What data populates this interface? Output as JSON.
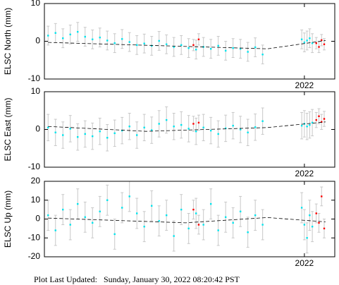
{
  "chart_data": [
    {
      "type": "scatter",
      "ylabel": "ELSC North (mm)",
      "xlim": [
        2021.016,
        2022.115
      ],
      "xticks": [
        2022
      ],
      "ylim": [
        -10,
        10
      ],
      "yticks": [
        -10,
        0,
        10
      ],
      "series": [
        {
          "color": "#00e5ee",
          "x": [
            2021.03,
            2021.058,
            2021.086,
            2021.114,
            2021.142,
            2021.17,
            2021.198,
            2021.226,
            2021.254,
            2021.282,
            2021.31,
            2021.338,
            2021.366,
            2021.394,
            2021.422,
            2021.45,
            2021.478,
            2021.506,
            2021.534,
            2021.562,
            2021.59,
            2021.618,
            2021.646,
            2021.674,
            2021.702,
            2021.73,
            2021.758,
            2021.786,
            2021.814,
            2021.842,
            2021.99,
            2022.0,
            2022.01,
            2022.02,
            2022.03
          ],
          "values": [
            1.5,
            2.2,
            0.8,
            1.8,
            2.5,
            1.2,
            0.5,
            1.0,
            0.2,
            -0.5,
            0.6,
            -0.2,
            -1.0,
            -0.6,
            -1.2,
            0.1,
            -0.8,
            -1.5,
            -1.0,
            -1.8,
            -2.2,
            -1.5,
            -2.0,
            -1.2,
            -2.5,
            -1.8,
            -2.0,
            -2.8,
            -1.6,
            -3.5,
            0.5,
            -0.3,
            0.2,
            0.8,
            -0.5
          ],
          "errors": [
            2.5,
            2.5,
            2.5,
            2.5,
            2.5,
            2.5,
            2.5,
            2.5,
            2.5,
            2.5,
            2.5,
            2.5,
            2.5,
            2.5,
            2.5,
            2.5,
            2.5,
            2.5,
            2.5,
            2.5,
            2.5,
            2.5,
            2.5,
            2.5,
            2.5,
            2.5,
            2.5,
            2.5,
            2.5,
            2.5,
            2.5,
            2.5,
            2.5,
            2.5,
            2.5
          ]
        },
        {
          "color": "#ff0000",
          "x": [
            2021.58,
            2021.6,
            2022.045,
            2022.055,
            2022.065,
            2022.075
          ],
          "values": [
            -1.0,
            0.5,
            -0.5,
            -1.5,
            0.3,
            -0.8
          ],
          "errors": [
            1.5,
            1.5,
            1.5,
            1.5,
            1.5,
            1.5
          ]
        }
      ],
      "trend": {
        "x": [
          2021.03,
          2021.86,
          2022.08
        ],
        "values": [
          -0.3,
          -2.0,
          0.2
        ]
      }
    },
    {
      "type": "scatter",
      "ylabel": "ELSC East (mm)",
      "xlim": [
        2021.016,
        2022.115
      ],
      "xticks": [
        2022
      ],
      "ylim": [
        -10,
        10
      ],
      "yticks": [
        -10,
        0,
        10
      ],
      "series": [
        {
          "color": "#00e5ee",
          "x": [
            2021.03,
            2021.058,
            2021.086,
            2021.114,
            2021.142,
            2021.17,
            2021.198,
            2021.226,
            2021.254,
            2021.282,
            2021.31,
            2021.338,
            2021.366,
            2021.394,
            2021.422,
            2021.45,
            2021.478,
            2021.506,
            2021.534,
            2021.562,
            2021.59,
            2021.618,
            2021.646,
            2021.674,
            2021.702,
            2021.73,
            2021.758,
            2021.786,
            2021.814,
            2021.842,
            2021.99,
            2022.0,
            2022.01,
            2022.02,
            2022.03
          ],
          "values": [
            0.5,
            -0.8,
            -1.5,
            0.2,
            -2.0,
            -1.2,
            -1.8,
            -0.5,
            -2.2,
            -1.0,
            -0.3,
            0.8,
            -1.5,
            0.5,
            -0.2,
            1.5,
            2.5,
            0.8,
            1.2,
            0.2,
            -0.5,
            0.5,
            -0.3,
            -1.2,
            0.3,
            1.0,
            0.0,
            -0.8,
            0.6,
            2.2,
            1.0,
            1.5,
            0.8,
            1.2,
            1.8
          ],
          "errors": [
            3.5,
            3.5,
            3.5,
            3.5,
            3.5,
            3.5,
            3.5,
            3.5,
            3.5,
            3.5,
            3.5,
            3.5,
            3.5,
            3.5,
            3.5,
            3.5,
            3.5,
            3.5,
            3.5,
            3.5,
            3.5,
            3.5,
            3.5,
            3.5,
            3.5,
            3.5,
            3.5,
            3.5,
            3.5,
            3.5,
            3.5,
            3.5,
            3.5,
            3.5,
            3.5
          ]
        },
        {
          "color": "#ff0000",
          "x": [
            2021.58,
            2021.6,
            2022.045,
            2022.055,
            2022.065,
            2022.075
          ],
          "values": [
            1.5,
            1.8,
            2.5,
            3.5,
            2.0,
            2.8
          ],
          "errors": [
            2,
            2,
            2,
            2,
            2,
            2
          ]
        }
      ],
      "trend": {
        "x": [
          2021.03,
          2021.4,
          2021.86,
          2022.08
        ],
        "values": [
          0.8,
          -0.5,
          0.5,
          2.0
        ]
      }
    },
    {
      "type": "scatter",
      "ylabel": "ELSC Up (mm)",
      "xlim": [
        2021.016,
        2022.115
      ],
      "xticks": [
        2022
      ],
      "ylim": [
        -20,
        20
      ],
      "yticks": [
        -20,
        -10,
        0,
        10,
        20
      ],
      "series": [
        {
          "color": "#00e5ee",
          "x": [
            2021.03,
            2021.058,
            2021.086,
            2021.114,
            2021.142,
            2021.17,
            2021.198,
            2021.226,
            2021.254,
            2021.282,
            2021.31,
            2021.338,
            2021.366,
            2021.394,
            2021.422,
            2021.45,
            2021.478,
            2021.506,
            2021.534,
            2021.562,
            2021.59,
            2021.618,
            2021.646,
            2021.674,
            2021.702,
            2021.73,
            2021.758,
            2021.786,
            2021.814,
            2021.842,
            2021.99,
            2022.0,
            2022.01,
            2022.02,
            2022.03
          ],
          "values": [
            2,
            -6,
            5,
            -3,
            8,
            1,
            -2,
            4,
            10,
            -8,
            6,
            12,
            3,
            -4,
            7,
            -1,
            2,
            -9,
            5,
            -5,
            3,
            -3,
            8,
            -6,
            1,
            -2,
            4,
            -7,
            2,
            -3,
            6,
            -3,
            -10,
            2,
            -4
          ],
          "errors": [
            8,
            8,
            8,
            8,
            8,
            8,
            8,
            8,
            8,
            8,
            8,
            8,
            8,
            8,
            8,
            8,
            8,
            8,
            8,
            8,
            8,
            8,
            8,
            8,
            8,
            8,
            8,
            8,
            8,
            8,
            8,
            8,
            8,
            8,
            8
          ]
        },
        {
          "color": "#ff0000",
          "x": [
            2021.58,
            2021.6,
            2022.045,
            2022.055,
            2022.065,
            2022.075
          ],
          "values": [
            5,
            -3,
            3,
            -2,
            12,
            -5
          ],
          "errors": [
            5,
            5,
            5,
            5,
            5,
            5
          ]
        }
      ],
      "trend": {
        "x": [
          2021.03,
          2021.55,
          2021.86,
          2022.08
        ],
        "values": [
          0.5,
          -2,
          0.8,
          -1.5
        ]
      }
    }
  ],
  "footer": "Plot Last Updated:   Sunday, January 30, 2022 08:20:42 PST"
}
